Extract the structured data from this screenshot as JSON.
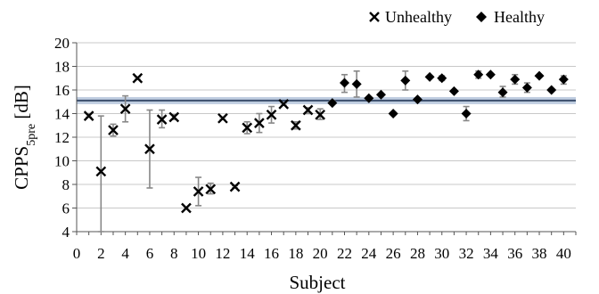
{
  "chart_data": {
    "type": "scatter",
    "title": "",
    "xlabel": "Subject",
    "ylabel_main": "CPPS",
    "ylabel_sub": "5pre",
    "ylabel_unit": " [dB]",
    "xlim": [
      0,
      41
    ],
    "ylim": [
      4,
      20
    ],
    "x_ticks": [
      0,
      2,
      4,
      6,
      8,
      10,
      12,
      14,
      16,
      18,
      20,
      22,
      24,
      26,
      28,
      30,
      32,
      34,
      36,
      38,
      40
    ],
    "y_ticks": [
      4,
      6,
      8,
      10,
      12,
      14,
      16,
      18,
      20
    ],
    "grid": "horizontal",
    "legend_position": "top-right",
    "threshold": {
      "value": 15.1,
      "band": [
        14.8,
        15.4
      ],
      "line_color": "#3a4d6b",
      "band_color": "#a9bcd6"
    },
    "colors": {
      "markers": "#000000",
      "error_bars": "#888888",
      "grid": "#c8c8c8"
    },
    "series": [
      {
        "name": "Unhealthy",
        "marker": "x",
        "points": [
          {
            "x": 1,
            "y": 13.8,
            "err": [
              13.7,
              14.0
            ]
          },
          {
            "x": 2,
            "y": 9.1,
            "err": [
              4.0,
              13.8
            ]
          },
          {
            "x": 3,
            "y": 12.6,
            "err": [
              12.1,
              13.1
            ]
          },
          {
            "x": 4,
            "y": 14.4,
            "err": [
              13.3,
              15.5
            ]
          },
          {
            "x": 5,
            "y": 17.0,
            "err": [
              16.9,
              17.1
            ]
          },
          {
            "x": 6,
            "y": 11.0,
            "err": [
              7.7,
              14.3
            ]
          },
          {
            "x": 7,
            "y": 13.5,
            "err": [
              12.8,
              14.3
            ]
          },
          {
            "x": 8,
            "y": 13.7,
            "err": [
              13.5,
              13.9
            ]
          },
          {
            "x": 9,
            "y": 6.0,
            "err": [
              6.0,
              6.1
            ]
          },
          {
            "x": 10,
            "y": 7.4,
            "err": [
              6.2,
              8.6
            ]
          },
          {
            "x": 11,
            "y": 7.6,
            "err": [
              7.2,
              8.1
            ]
          },
          {
            "x": 12,
            "y": 13.6,
            "err": [
              13.5,
              13.7
            ]
          },
          {
            "x": 13,
            "y": 7.8,
            "err": [
              7.7,
              7.9
            ]
          },
          {
            "x": 14,
            "y": 12.8,
            "err": [
              12.3,
              13.3
            ]
          },
          {
            "x": 15,
            "y": 13.2,
            "err": [
              12.4,
              14.0
            ]
          },
          {
            "x": 16,
            "y": 13.9,
            "err": [
              13.2,
              14.6
            ]
          },
          {
            "x": 17,
            "y": 14.8,
            "err": [
              14.7,
              14.9
            ]
          },
          {
            "x": 18,
            "y": 13.0,
            "err": [
              12.7,
              13.3
            ]
          },
          {
            "x": 19,
            "y": 14.3,
            "err": [
              14.0,
              14.5
            ]
          },
          {
            "x": 20,
            "y": 13.9,
            "err": [
              13.5,
              14.4
            ]
          }
        ]
      },
      {
        "name": "Healthy",
        "marker": "diamond",
        "points": [
          {
            "x": 21,
            "y": 14.9,
            "err": [
              14.8,
              15.1
            ]
          },
          {
            "x": 22,
            "y": 16.6,
            "err": [
              15.8,
              17.3
            ]
          },
          {
            "x": 23,
            "y": 16.5,
            "err": [
              15.4,
              17.6
            ]
          },
          {
            "x": 24,
            "y": 15.3,
            "err": [
              15.2,
              15.4
            ]
          },
          {
            "x": 25,
            "y": 15.6,
            "err": [
              15.5,
              15.7
            ]
          },
          {
            "x": 26,
            "y": 14.0,
            "err": [
              13.9,
              14.1
            ]
          },
          {
            "x": 27,
            "y": 16.8,
            "err": [
              16.0,
              17.6
            ]
          },
          {
            "x": 28,
            "y": 15.2,
            "err": [
              15.1,
              15.3
            ]
          },
          {
            "x": 29,
            "y": 17.1,
            "err": [
              17.0,
              17.2
            ]
          },
          {
            "x": 30,
            "y": 17.0,
            "err": [
              16.8,
              17.2
            ]
          },
          {
            "x": 31,
            "y": 15.9,
            "err": [
              15.8,
              16.0
            ]
          },
          {
            "x": 32,
            "y": 14.0,
            "err": [
              13.4,
              14.6
            ]
          },
          {
            "x": 33,
            "y": 17.3,
            "err": [
              17.0,
              17.6
            ]
          },
          {
            "x": 34,
            "y": 17.3,
            "err": [
              17.2,
              17.4
            ]
          },
          {
            "x": 35,
            "y": 15.8,
            "err": [
              15.4,
              16.3
            ]
          },
          {
            "x": 36,
            "y": 16.9,
            "err": [
              16.5,
              17.3
            ]
          },
          {
            "x": 37,
            "y": 16.2,
            "err": [
              15.8,
              16.6
            ]
          },
          {
            "x": 38,
            "y": 17.2,
            "err": [
              17.1,
              17.3
            ]
          },
          {
            "x": 39,
            "y": 16.0,
            "err": [
              15.9,
              16.1
            ]
          },
          {
            "x": 40,
            "y": 16.9,
            "err": [
              16.5,
              17.2
            ]
          }
        ]
      }
    ]
  }
}
